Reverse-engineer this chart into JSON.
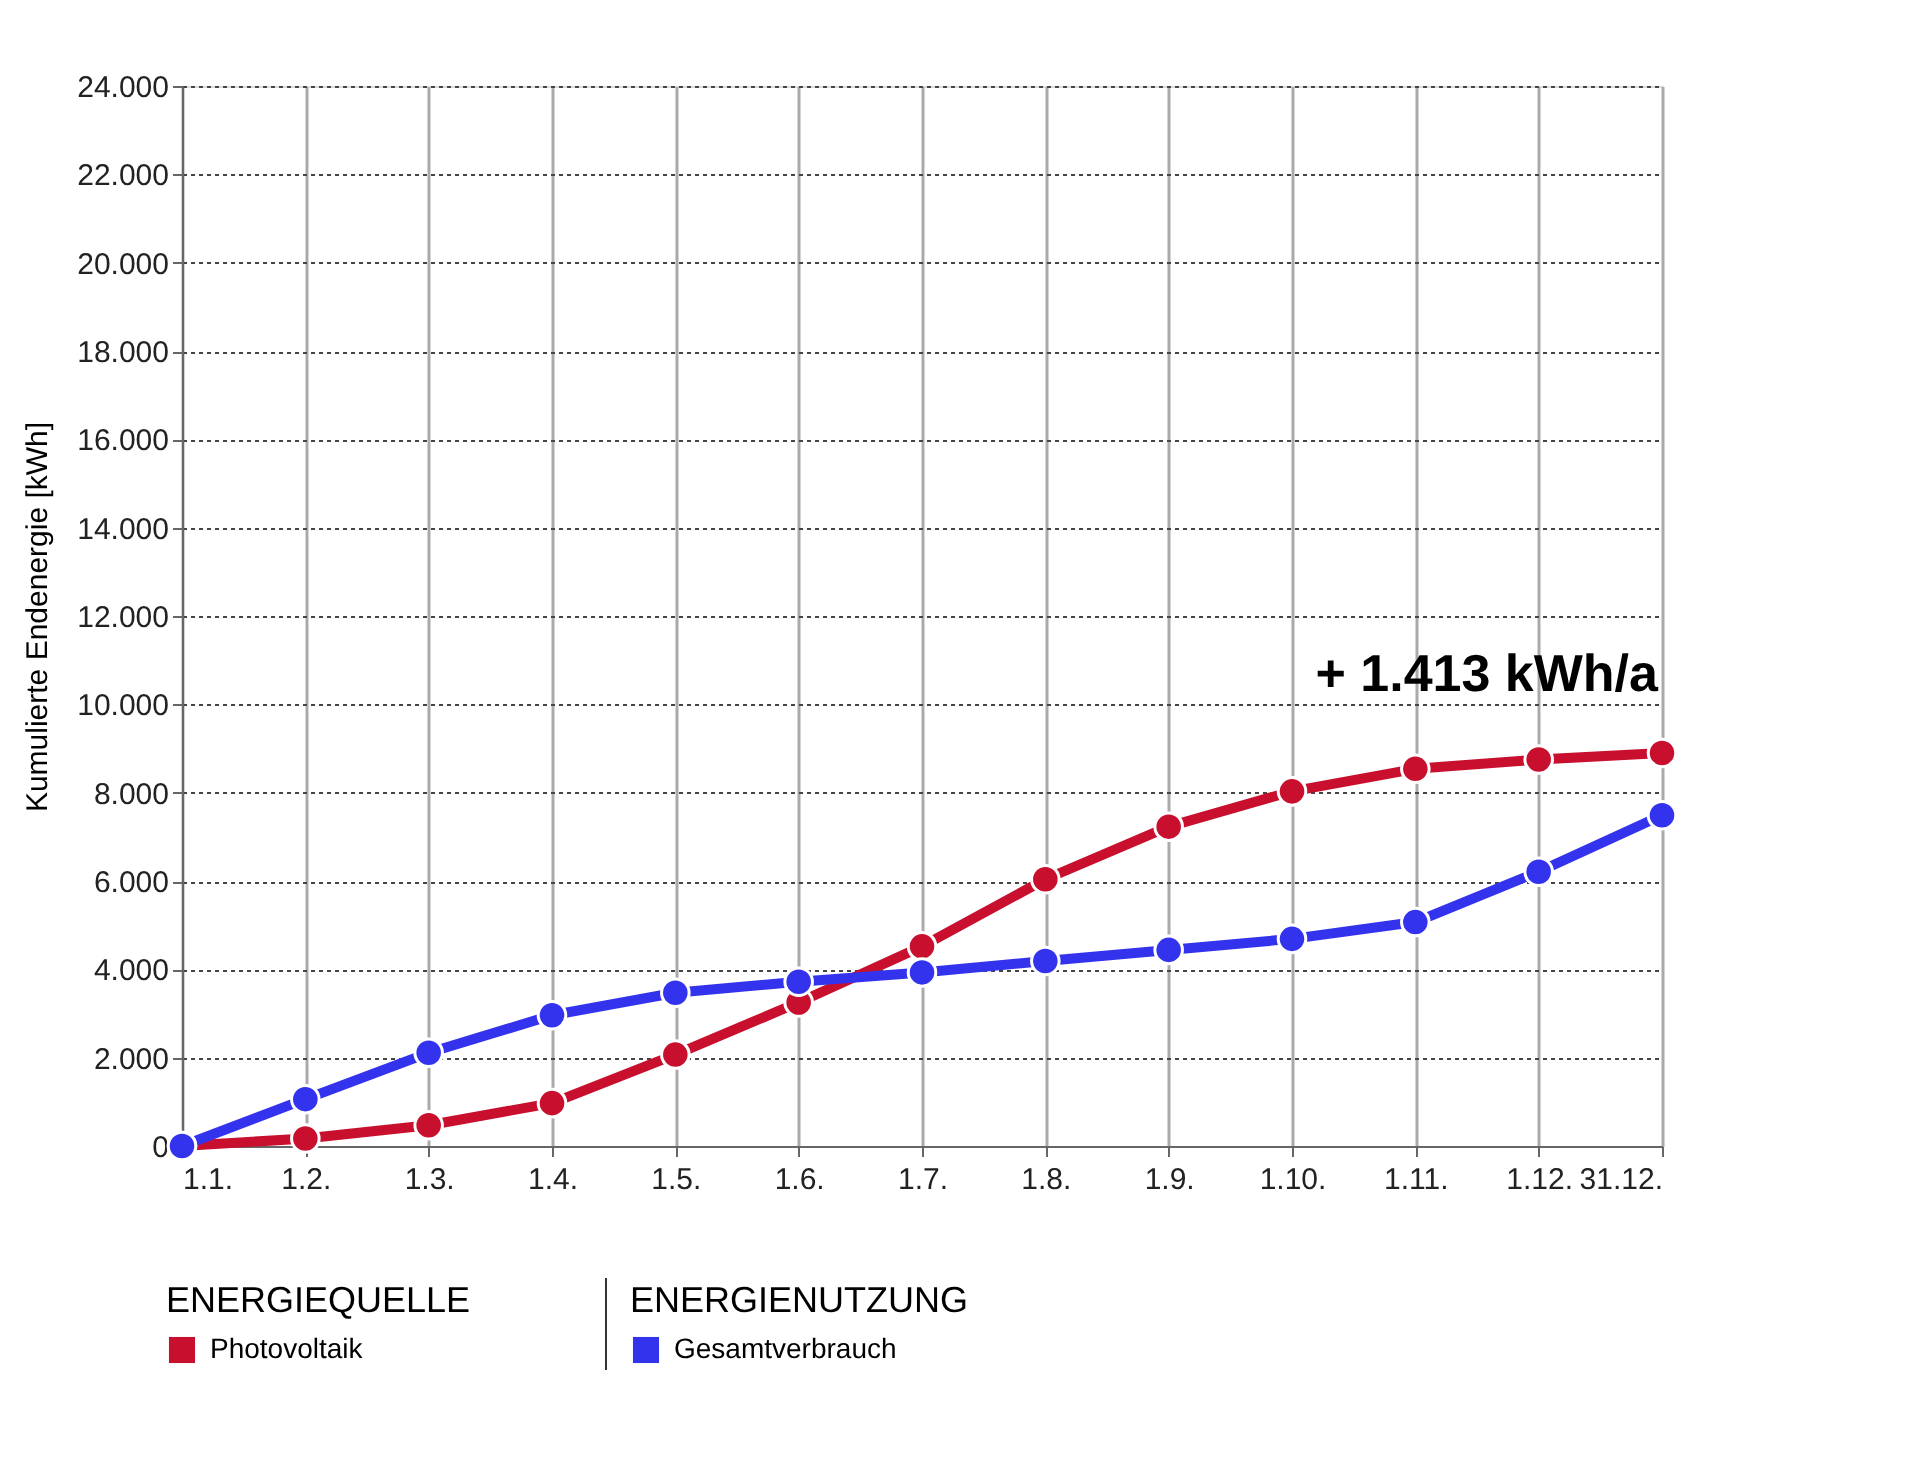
{
  "chart_data": {
    "type": "line",
    "ylabel": "Kumulierte Endenergie [kWh]",
    "categories": [
      "1.1.",
      "1.2.",
      "1.3.",
      "1.4.",
      "1.5.",
      "1.6.",
      "1.7.",
      "1.8.",
      "1.9.",
      "1.10.",
      "1.11.",
      "1.12.",
      "31.12."
    ],
    "series": [
      {
        "name": "Photovoltaik",
        "color": "#c8102e",
        "values": [
          0,
          170,
          470,
          970,
          2070,
          3250,
          4520,
          6040,
          7230,
          8030,
          8540,
          8750,
          8900
        ]
      },
      {
        "name": "Gesamtverbrauch",
        "color": "#3333ee",
        "values": [
          0,
          1060,
          2110,
          2960,
          3470,
          3720,
          3930,
          4190,
          4440,
          4690,
          5070,
          6210,
          7490
        ]
      }
    ],
    "legend_title": [
      "ENERGIEQUELLE",
      "ENERGIENUTZUNG"
    ],
    "annotations": [
      "+ 1.413 kWh/a"
    ],
    "ylim": [
      0,
      24000
    ],
    "yticks": [
      {
        "value": 0,
        "label": "0"
      },
      {
        "value": 2000,
        "label": "2.000"
      },
      {
        "value": 4000,
        "label": "4.000"
      },
      {
        "value": 6000,
        "label": "6.000"
      },
      {
        "value": 8000,
        "label": "8.000"
      },
      {
        "value": 10000,
        "label": "10.000"
      },
      {
        "value": 12000,
        "label": "12.000"
      },
      {
        "value": 14000,
        "label": "14.000"
      },
      {
        "value": 16000,
        "label": "16.000"
      },
      {
        "value": 18000,
        "label": "18.000"
      },
      {
        "value": 20000,
        "label": "20.000"
      },
      {
        "value": 22000,
        "label": "22.000"
      },
      {
        "value": 24000,
        "label": "24.000"
      }
    ],
    "grid": true,
    "legend": "bottom",
    "marker": "circle",
    "line_style": "solid"
  }
}
